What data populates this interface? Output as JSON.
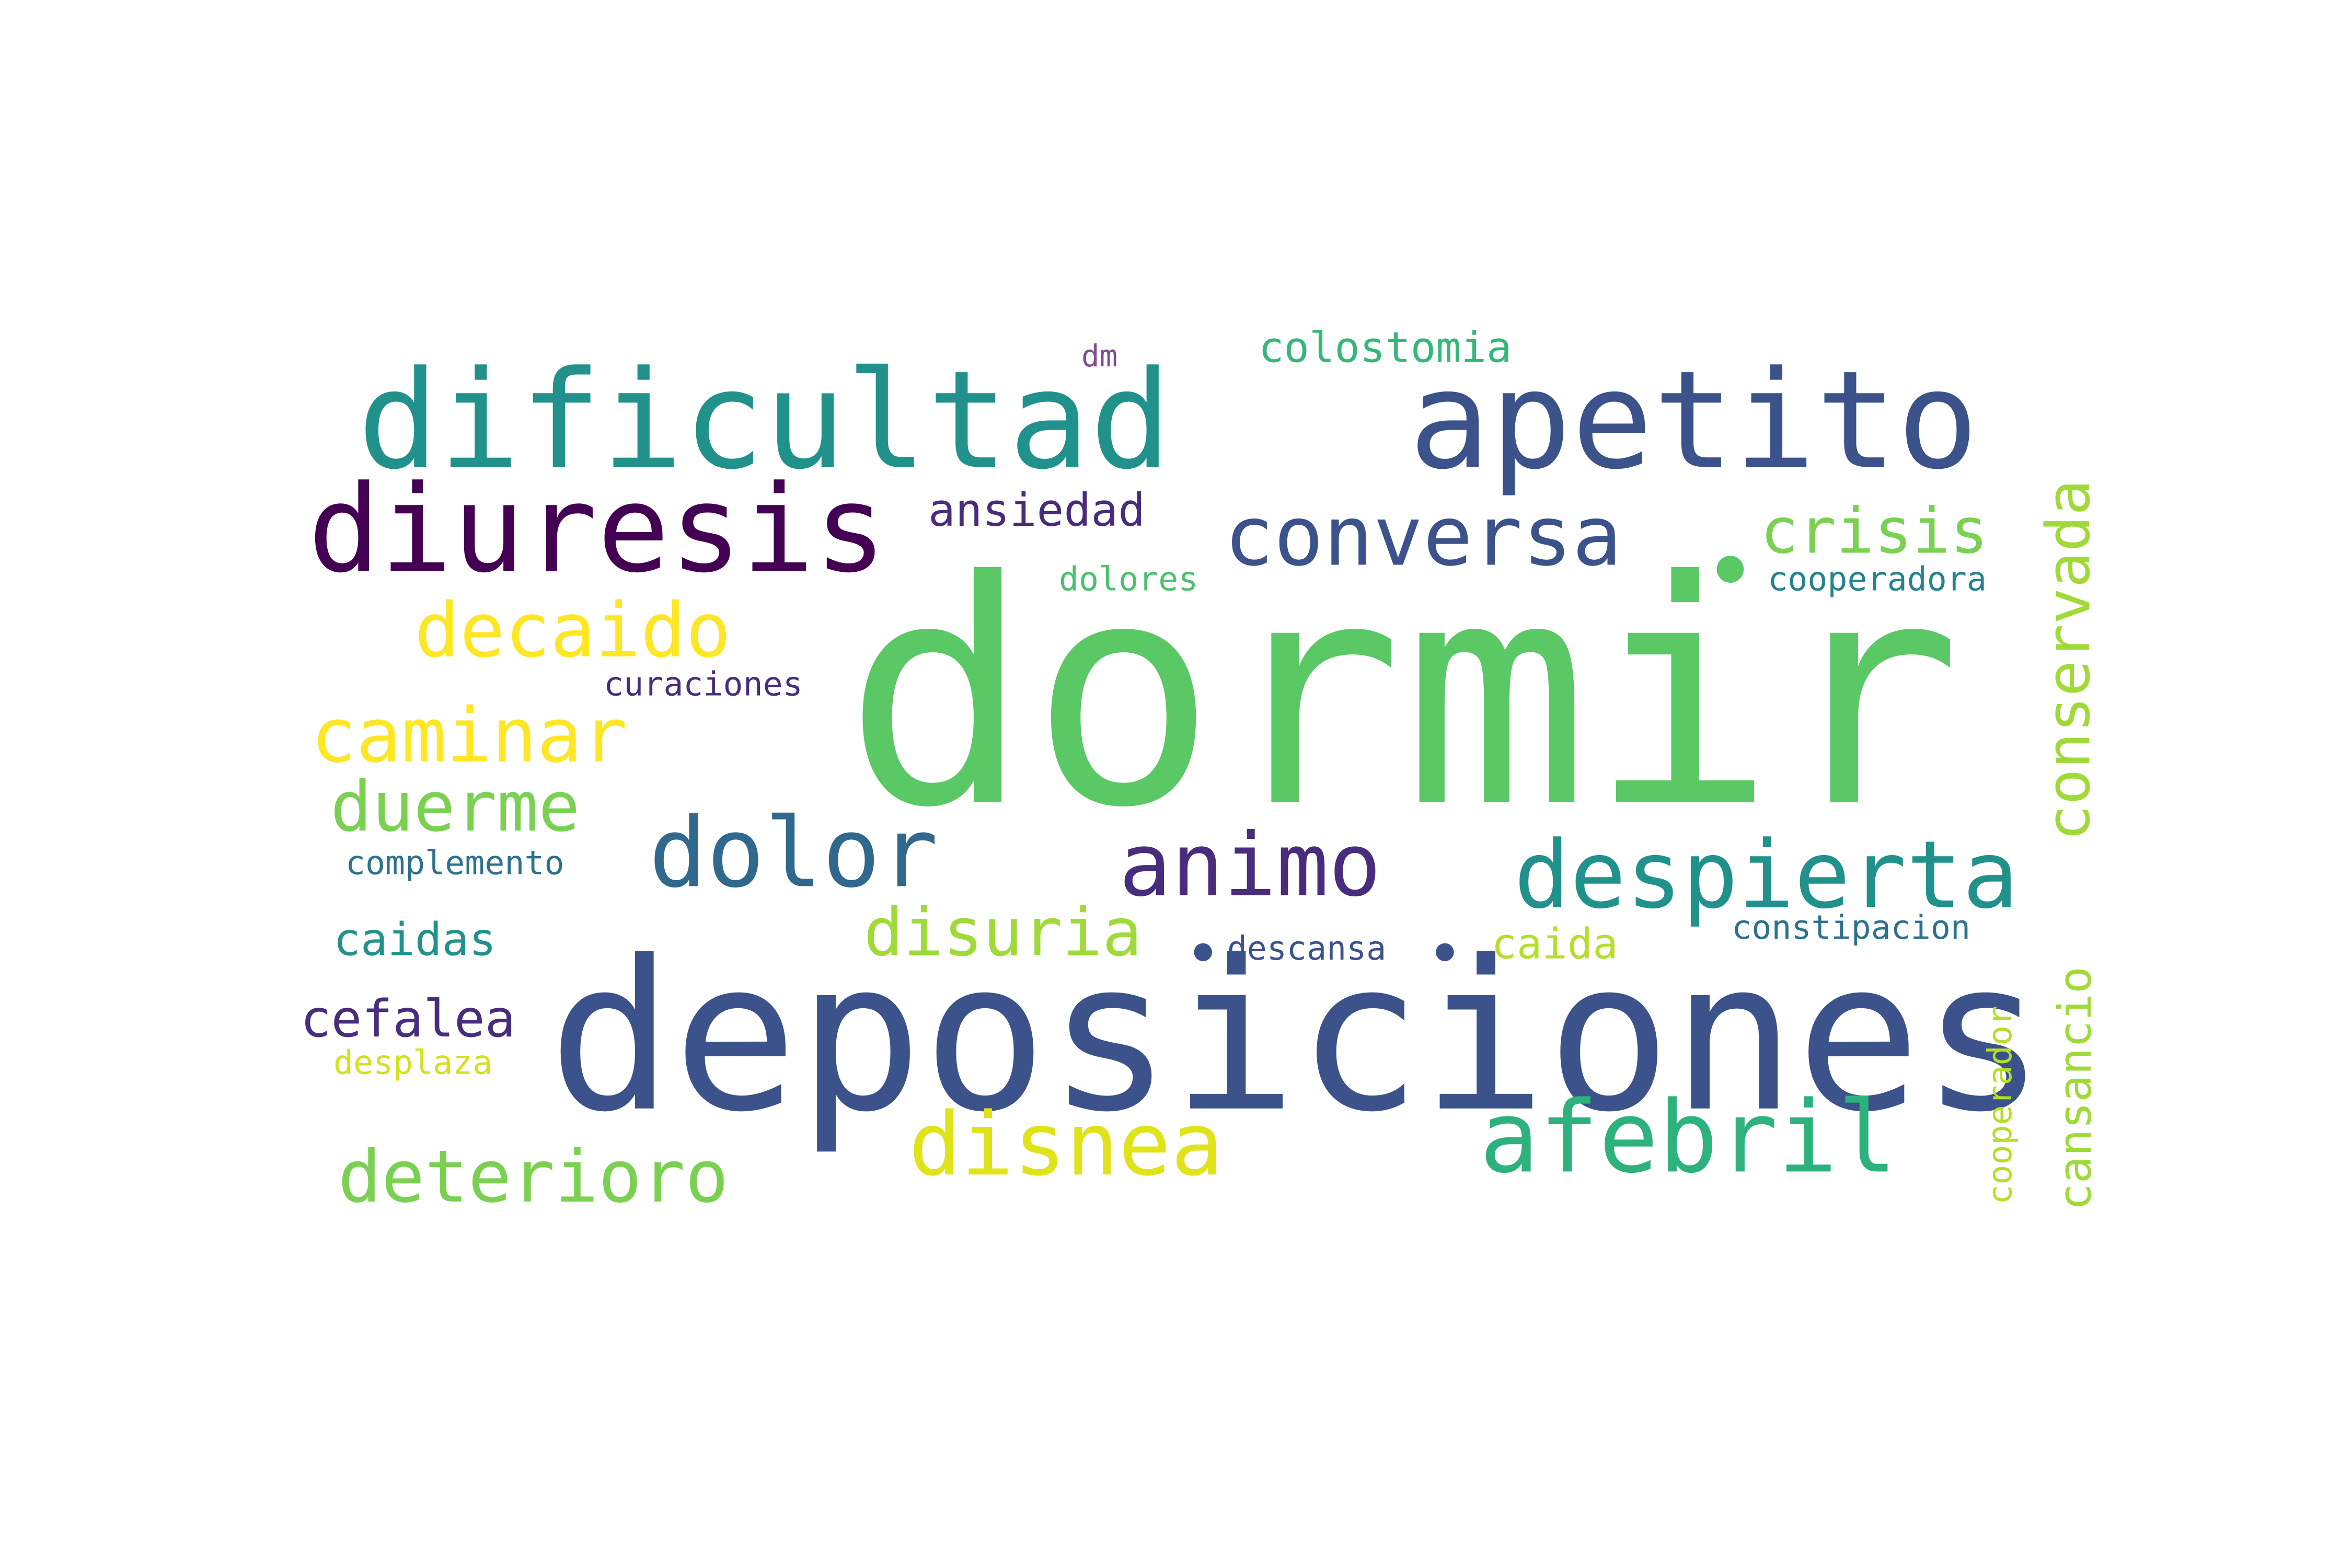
{
  "words": [
    {
      "text": "dormir",
      "color": "#5ac864"
    },
    {
      "text": "deposiciones",
      "color": "#3b528b"
    },
    {
      "text": "dificultad",
      "color": "#21918c"
    },
    {
      "text": "apetito",
      "color": "#3b528b"
    },
    {
      "text": "diuresis",
      "color": "#440154"
    },
    {
      "text": "conversa",
      "color": "#3b528b"
    },
    {
      "text": "crisis",
      "color": "#7ad151"
    },
    {
      "text": "decaido",
      "color": "#fde725"
    },
    {
      "text": "caminar",
      "color": "#fde725"
    },
    {
      "text": "duerme",
      "color": "#7ad151"
    },
    {
      "text": "dolor",
      "color": "#31688e"
    },
    {
      "text": "animo",
      "color": "#472d7b"
    },
    {
      "text": "despierta",
      "color": "#21918c"
    },
    {
      "text": "conservada",
      "color": "#a0da39"
    },
    {
      "text": "disuria",
      "color": "#a0da39"
    },
    {
      "text": "afebril",
      "color": "#2db27d"
    },
    {
      "text": "disnea",
      "color": "#dfe318"
    },
    {
      "text": "deterioro",
      "color": "#7ad151"
    },
    {
      "text": "colostomia",
      "color": "#35b779"
    },
    {
      "text": "dm",
      "color": "#7e4e90"
    },
    {
      "text": "ansiedad",
      "color": "#472d7b"
    },
    {
      "text": "dolores",
      "color": "#4ac16d"
    },
    {
      "text": "cooperadora",
      "color": "#26828e"
    },
    {
      "text": "curaciones",
      "color": "#472d7b"
    },
    {
      "text": "complemento",
      "color": "#2c728e"
    },
    {
      "text": "caidas",
      "color": "#21918c"
    },
    {
      "text": "descansa",
      "color": "#3b528b"
    },
    {
      "text": "caida",
      "color": "#b5de2b"
    },
    {
      "text": "constipacion",
      "color": "#2c728e"
    },
    {
      "text": "cansancio",
      "color": "#a0da39"
    },
    {
      "text": "cefalea",
      "color": "#472d7b"
    },
    {
      "text": "desplaza",
      "color": "#d2e21b"
    },
    {
      "text": "cooperador",
      "color": "#b5de2b"
    }
  ]
}
